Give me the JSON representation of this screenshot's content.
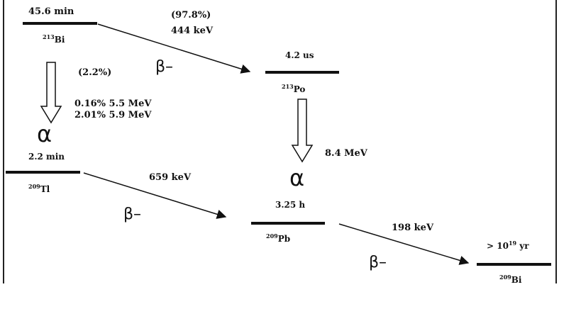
{
  "colors": {
    "ink": "#111111",
    "frame": "#222222",
    "background": "#ffffff"
  },
  "states": {
    "bi213": {
      "halflife": "45.6 min",
      "mass": "213",
      "symbol": "Bi"
    },
    "po213": {
      "halflife": "4.2 us",
      "mass": "213",
      "symbol": "Po"
    },
    "tl209": {
      "halflife": "2.2 min",
      "mass": "209",
      "symbol": "Tl"
    },
    "pb209": {
      "halflife": "3.25 h",
      "mass": "209",
      "symbol": "Pb"
    },
    "bi209": {
      "halflife_prefix": "> 10",
      "halflife_exp": "19",
      "halflife_unit": " yr",
      "mass": "209",
      "symbol": "Bi"
    }
  },
  "transitions": {
    "bi213_to_po213": {
      "branch": "(97.8%)",
      "energy": "444 keV",
      "mode": "β–"
    },
    "bi213_to_tl209": {
      "branch": "(2.2%)",
      "line1": "0.16% 5.5 MeV",
      "line2": "2.01% 5.9 MeV",
      "mode": "α"
    },
    "po213_to_pb209": {
      "energy": "8.4 MeV",
      "mode": "α"
    },
    "tl209_to_pb209": {
      "energy": "659 keV",
      "mode": "β–"
    },
    "pb209_to_bi209": {
      "energy": "198 keV",
      "mode": "β–"
    }
  }
}
